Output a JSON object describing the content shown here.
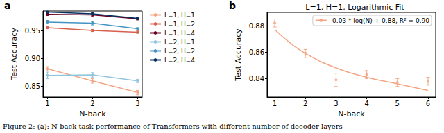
{
  "caption": "Figure 2: (a): N-back task performance of Transformers with different number of decoder layers",
  "chart_data": [
    {
      "type": "line",
      "panel": "a",
      "x_label": "N-back",
      "y_label": "Test Accuracy",
      "x": [
        1,
        2,
        3
      ],
      "xlim": [
        0.9,
        3.1
      ],
      "xticks": [
        1,
        2,
        3
      ],
      "ylim": [
        0.83,
        0.985
      ],
      "yticks": [
        0.85,
        {
          "value": 0.9,
          "label": "0.90"
        },
        0.95
      ],
      "grid": false,
      "legend": "outside right",
      "marker": "circle",
      "line_style": "solid",
      "series": [
        {
          "name": "L=1, H=1",
          "color": "#f4a582",
          "values": [
            0.881,
            0.859,
            0.838
          ],
          "errors": [
            0.004,
            0.004,
            0.004
          ]
        },
        {
          "name": "L=1, H=2",
          "color": "#d6604d",
          "values": [
            0.955,
            0.95,
            0.947
          ],
          "errors": [
            0.002,
            0.002,
            0.002
          ]
        },
        {
          "name": "L=1, H=4",
          "color": "#67001f",
          "values": [
            0.979,
            0.978,
            0.971
          ],
          "errors": [
            0.002,
            0.002,
            0.002
          ]
        },
        {
          "name": "L=2, H=1",
          "color": "#92c5de",
          "values": [
            0.869,
            0.87,
            0.859
          ],
          "errors": [
            0.006,
            0.004,
            0.003
          ]
        },
        {
          "name": "L=2, H=2",
          "color": "#4393c3",
          "values": [
            0.965,
            0.963,
            0.953
          ],
          "errors": [
            0.003,
            0.003,
            0.002
          ]
        },
        {
          "name": "L=2, H=4",
          "color": "#053061",
          "values": [
            0.983,
            0.98,
            0.972
          ],
          "errors": [
            0.002,
            0.002,
            0.002
          ]
        }
      ]
    },
    {
      "type": "scatter",
      "panel": "b",
      "title": "L=1, H=1, Logarithmic Fit",
      "x_label": "N-back",
      "y_label": "Test Accuracy",
      "x": [
        1,
        2,
        3,
        4,
        5,
        6
      ],
      "xlim": [
        0.75,
        6.25
      ],
      "xticks": [
        1,
        2,
        3,
        4,
        5,
        6
      ],
      "ylim": [
        0.826,
        0.89
      ],
      "yticks": [
        0.84,
        0.86,
        0.88
      ],
      "grid": false,
      "legend": "upper right",
      "marker": "circle",
      "series": [
        {
          "type": "scatter",
          "color": "#f4a582",
          "values": [
            0.882,
            0.859,
            0.839,
            0.843,
            0.837,
            0.838
          ],
          "errors": [
            0.003,
            0.003,
            0.005,
            0.003,
            0.003,
            0.003
          ]
        },
        {
          "type": "line",
          "name": "-0.03 * log(N) + 0.88, R² = 0.90",
          "color": "#f4a582",
          "line_style": "solid",
          "x": [
            1,
            1.5,
            2,
            3,
            4,
            5,
            6
          ],
          "values": [
            0.877,
            0.867,
            0.859,
            0.848,
            0.841,
            0.836,
            0.831
          ]
        }
      ]
    }
  ]
}
